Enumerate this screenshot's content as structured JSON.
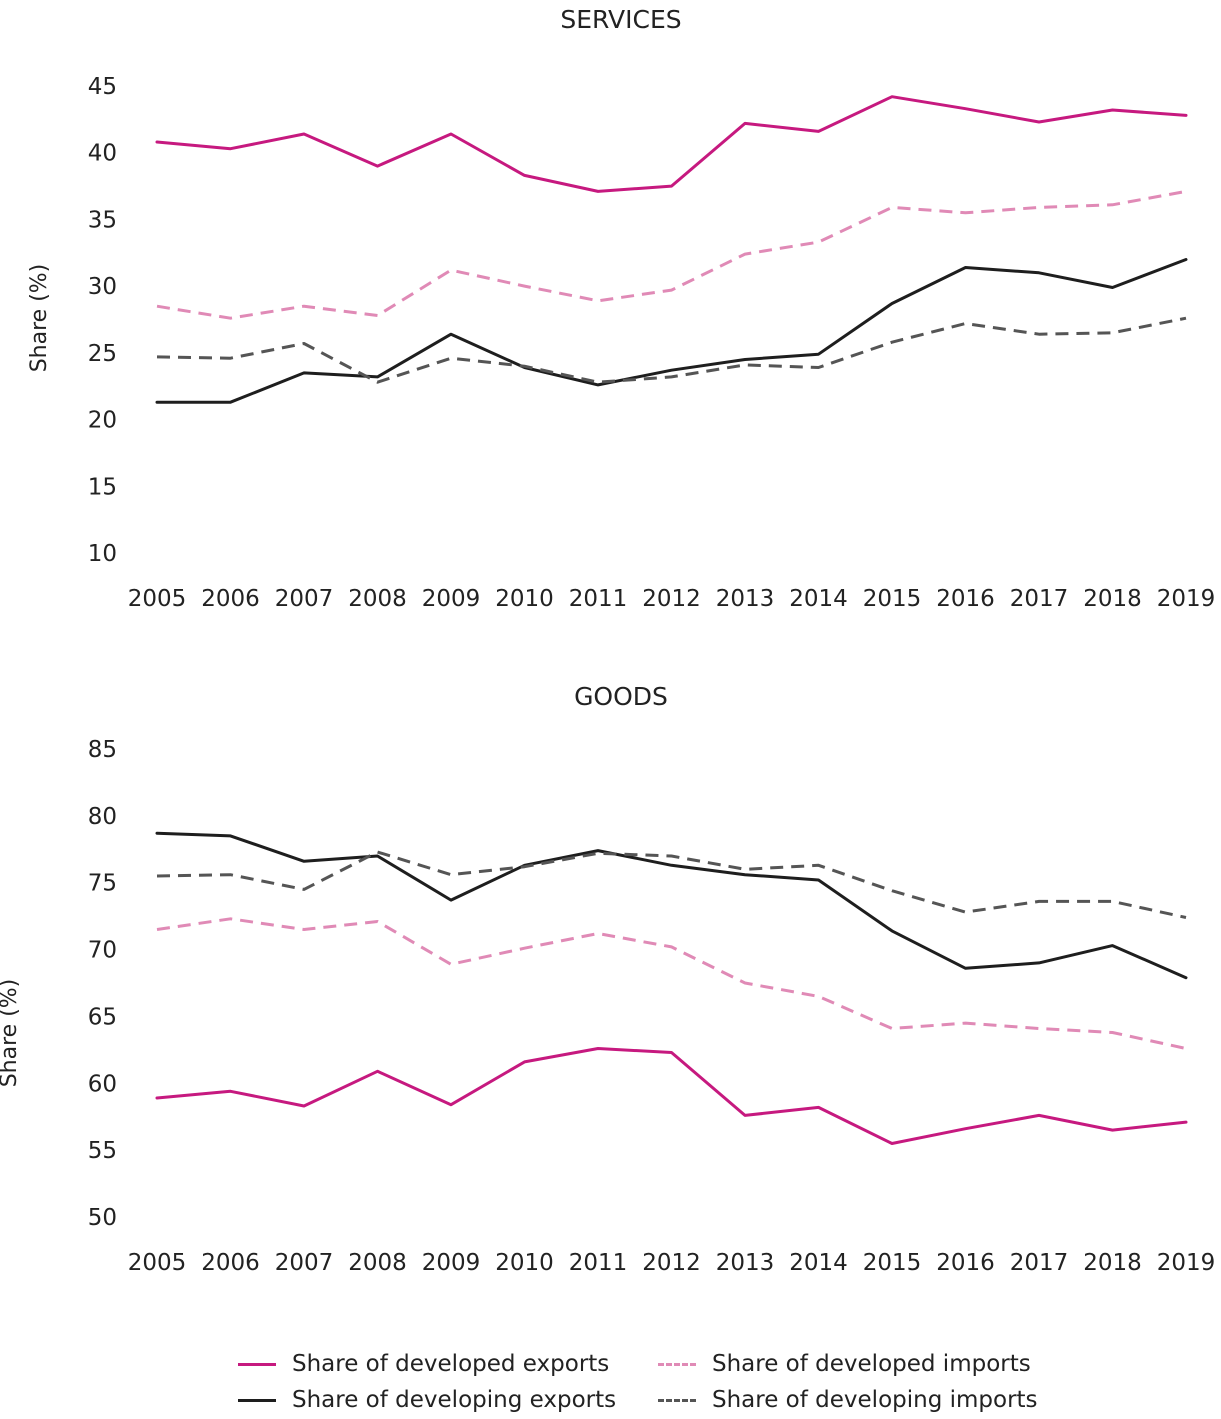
{
  "chart_data": [
    {
      "type": "line",
      "title": "SERVICES",
      "xlabel": "",
      "ylabel": "Share (%)",
      "x": [
        "2005",
        "2006",
        "2007",
        "2008",
        "2009",
        "2010",
        "2011",
        "2012",
        "2013",
        "2014",
        "2015",
        "2016",
        "2017",
        "2018",
        "2019"
      ],
      "ylim": [
        10,
        45
      ],
      "yticks": [
        10,
        15,
        20,
        25,
        30,
        35,
        40,
        45
      ],
      "grid": false,
      "series": [
        {
          "name": "Share of developed exports",
          "color": "#c6197f",
          "style": "solid",
          "values": [
            40.8,
            40.3,
            41.4,
            39.0,
            41.4,
            38.3,
            37.1,
            37.5,
            42.2,
            41.6,
            44.2,
            43.3,
            42.3,
            43.2,
            42.8
          ]
        },
        {
          "name": "Share of developed imports",
          "color": "#e08ab6",
          "style": "dashed",
          "values": [
            28.5,
            27.6,
            28.5,
            27.8,
            31.2,
            30.0,
            28.9,
            29.7,
            32.4,
            33.3,
            35.9,
            35.5,
            35.9,
            36.1,
            37.1
          ]
        },
        {
          "name": "Share of developing exports",
          "color": "#1e1e1e",
          "style": "solid",
          "values": [
            21.3,
            21.3,
            23.5,
            23.2,
            26.4,
            23.9,
            22.6,
            23.7,
            24.5,
            24.9,
            28.7,
            31.4,
            31.0,
            29.9,
            32.0
          ]
        },
        {
          "name": "Share of developing imports",
          "color": "#555555",
          "style": "dashed",
          "values": [
            24.7,
            24.6,
            25.7,
            22.8,
            24.6,
            24.0,
            22.8,
            23.2,
            24.1,
            23.9,
            25.8,
            27.2,
            26.4,
            26.5,
            27.6
          ]
        }
      ]
    },
    {
      "type": "line",
      "title": "GOODS",
      "xlabel": "",
      "ylabel": "Share (%)",
      "x": [
        "2005",
        "2006",
        "2007",
        "2008",
        "2009",
        "2010",
        "2011",
        "2012",
        "2013",
        "2014",
        "2015",
        "2016",
        "2017",
        "2018",
        "2019"
      ],
      "ylim": [
        50,
        85
      ],
      "yticks": [
        50,
        55,
        60,
        65,
        70,
        75,
        80,
        85
      ],
      "grid": false,
      "series": [
        {
          "name": "Share of developed exports",
          "color": "#c6197f",
          "style": "solid",
          "values": [
            58.9,
            59.4,
            58.3,
            60.9,
            58.4,
            61.6,
            62.6,
            62.3,
            57.6,
            58.2,
            55.5,
            56.6,
            57.6,
            56.5,
            57.1
          ]
        },
        {
          "name": "Share of developed imports",
          "color": "#e08ab6",
          "style": "dashed",
          "values": [
            71.5,
            72.3,
            71.5,
            72.1,
            68.9,
            70.1,
            71.2,
            70.2,
            67.5,
            66.5,
            64.1,
            64.5,
            64.1,
            63.8,
            62.6
          ]
        },
        {
          "name": "Share of developing exports",
          "color": "#1e1e1e",
          "style": "solid",
          "values": [
            78.7,
            78.5,
            76.6,
            77.0,
            73.7,
            76.3,
            77.4,
            76.3,
            75.6,
            75.2,
            71.4,
            68.6,
            69.0,
            70.3,
            67.9
          ]
        },
        {
          "name": "Share of developing imports",
          "color": "#555555",
          "style": "dashed",
          "values": [
            75.5,
            75.6,
            74.5,
            77.3,
            75.6,
            76.2,
            77.2,
            77.0,
            76.0,
            76.3,
            74.4,
            72.8,
            73.6,
            73.6,
            72.4
          ]
        }
      ]
    }
  ],
  "legend": {
    "items": [
      {
        "label": "Share of developed exports",
        "color": "#c6197f",
        "style": "solid"
      },
      {
        "label": "Share of developed imports",
        "color": "#e08ab6",
        "style": "dashed"
      },
      {
        "label": "Share of developing exports",
        "color": "#1e1e1e",
        "style": "solid"
      },
      {
        "label": "Share of developing imports",
        "color": "#555555",
        "style": "dashed"
      }
    ]
  }
}
